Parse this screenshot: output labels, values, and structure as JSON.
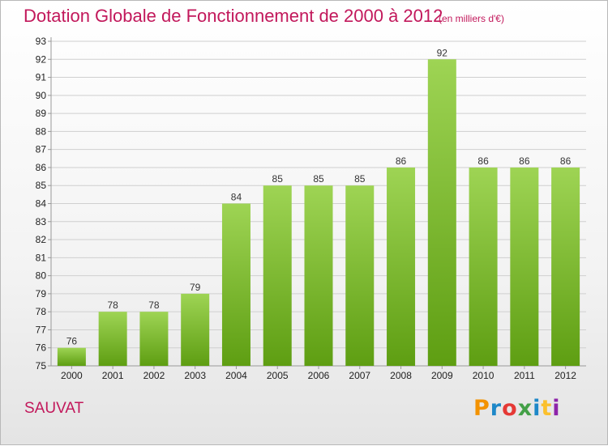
{
  "header": {
    "title": "Dotation Globale de Fonctionnement de 2000 à 2012",
    "unit": "(en milliers d'€)"
  },
  "footer": {
    "commune": "SAUVAT",
    "logo_text": "Proxiti",
    "logo_colors": [
      "#f39200",
      "#1e88c8",
      "#e53935",
      "#43a047",
      "#1e88c8",
      "#fbc02d",
      "#8e24aa"
    ]
  },
  "chart_data": {
    "type": "bar",
    "categories": [
      "2000",
      "2001",
      "2002",
      "2003",
      "2004",
      "2005",
      "2006",
      "2007",
      "2008",
      "2009",
      "2010",
      "2011",
      "2012"
    ],
    "values": [
      76,
      78,
      78,
      79,
      84,
      85,
      85,
      85,
      86,
      92,
      86,
      86,
      86
    ],
    "data_labels": [
      "76",
      "78",
      "78",
      "79",
      "84",
      "85",
      "85",
      "85",
      "86",
      "92",
      "86",
      "86",
      "86"
    ],
    "y_ticks": [
      "75",
      "76",
      "77",
      "78",
      "79",
      "80",
      "81",
      "82",
      "83",
      "84",
      "85",
      "86",
      "87",
      "88",
      "89",
      "90",
      "91",
      "92",
      "93"
    ],
    "ylim": [
      75,
      93
    ],
    "grid": true,
    "colors": {
      "bar_top": "#9ed454",
      "bar_bottom": "#5e9e12",
      "grid": "#cfcfcf",
      "axis": "#999999"
    }
  }
}
